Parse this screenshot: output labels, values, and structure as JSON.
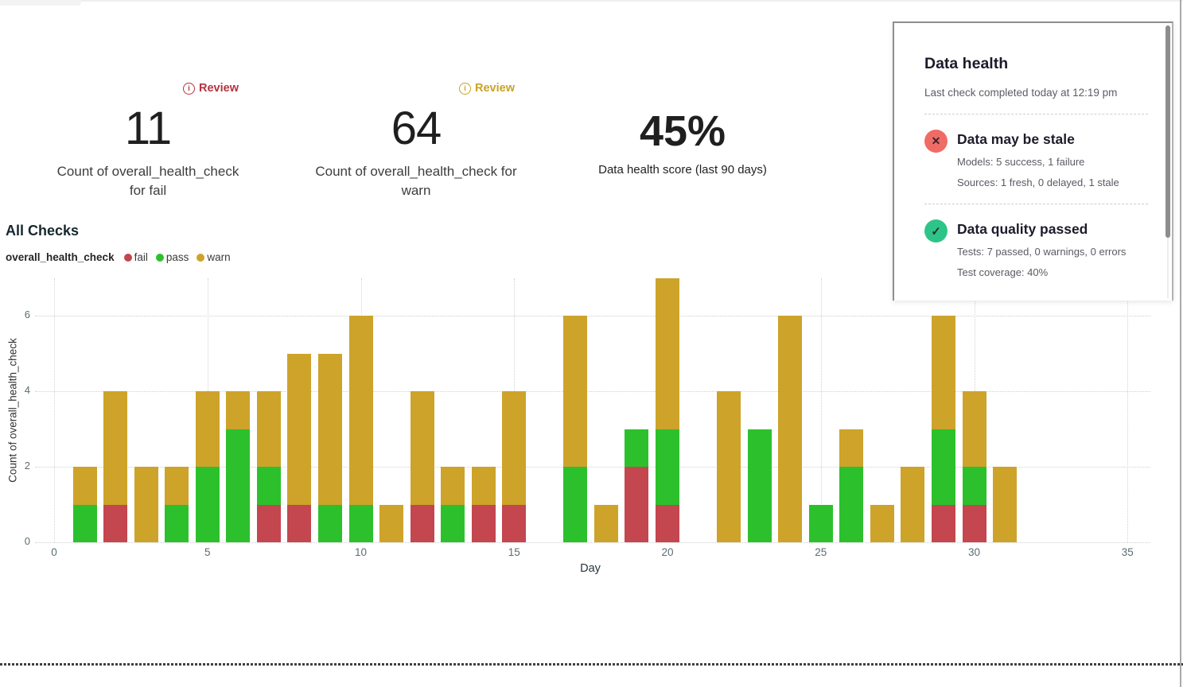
{
  "icons": {
    "info_glyph": "i",
    "fail_glyph": "✕",
    "pass_glyph": "✓"
  },
  "metrics": [
    {
      "badge_label": "Review",
      "value": "11",
      "caption": "Count of overall_health_check for fail"
    },
    {
      "badge_label": "Review",
      "value": "64",
      "caption": "Count of overall_health_check for warn"
    },
    {
      "value": "45%",
      "caption": "Data health score (last 90 days)"
    }
  ],
  "health_panel": {
    "title": "Data health",
    "subtitle": "Last check completed today at 12:19 pm",
    "sections": [
      {
        "status": "fail",
        "icon": "x-circle-icon",
        "title": "Data may be stale",
        "lines": [
          "Models: 5 success, 1 failure",
          "Sources: 1 fresh, 0 delayed, 1 stale"
        ]
      },
      {
        "status": "pass",
        "icon": "check-circle-icon",
        "title": "Data quality passed",
        "lines": [
          "Tests: 7 passed, 0 warnings, 0 errors",
          "Test coverage: 40%"
        ]
      }
    ]
  },
  "chart": {
    "title": "All Checks",
    "legend_label": "overall_health_check",
    "legend": [
      {
        "name": "fail",
        "color": "#c4464f"
      },
      {
        "name": "pass",
        "color": "#2cc12c"
      },
      {
        "name": "warn",
        "color": "#cda32a"
      }
    ]
  },
  "chart_data": {
    "type": "bar",
    "stacked": true,
    "title": "All Checks",
    "xlabel": "Day",
    "ylabel": "Count_of_overall_health_check",
    "ylabel_display": "Count of overall_health_check",
    "x": [
      1,
      2,
      3,
      4,
      5,
      6,
      7,
      8,
      9,
      10,
      11,
      12,
      13,
      14,
      15,
      16,
      17,
      18,
      19,
      20,
      21,
      22,
      23,
      24,
      25,
      26,
      27,
      28,
      29,
      30,
      31
    ],
    "series": [
      {
        "name": "fail",
        "color": "#c4464f",
        "values": [
          0,
          1,
          0,
          0,
          0,
          0,
          1,
          1,
          0,
          0,
          0,
          1,
          0,
          1,
          1,
          0,
          0,
          0,
          2,
          1,
          0,
          0,
          0,
          0,
          0,
          0,
          0,
          0,
          1,
          1,
          0
        ]
      },
      {
        "name": "pass",
        "color": "#2cc12c",
        "values": [
          1,
          0,
          0,
          1,
          2,
          3,
          1,
          0,
          1,
          1,
          0,
          0,
          1,
          0,
          0,
          0,
          2,
          0,
          1,
          2,
          0,
          0,
          3,
          0,
          1,
          2,
          0,
          0,
          2,
          1,
          0
        ]
      },
      {
        "name": "warn",
        "color": "#cda32a",
        "values": [
          1,
          3,
          2,
          1,
          2,
          1,
          2,
          4,
          4,
          5,
          1,
          3,
          1,
          1,
          3,
          0,
          4,
          1,
          0,
          4,
          0,
          4,
          0,
          6,
          0,
          1,
          1,
          2,
          3,
          2,
          2
        ]
      }
    ],
    "x_ticks": [
      0,
      5,
      10,
      15,
      20,
      25,
      30,
      35
    ],
    "y_ticks": [
      0,
      2,
      4,
      6
    ],
    "xlim": [
      -0.5,
      36
    ],
    "ylim": [
      0,
      7.1
    ],
    "grid": true,
    "legend_position": "top-left"
  }
}
